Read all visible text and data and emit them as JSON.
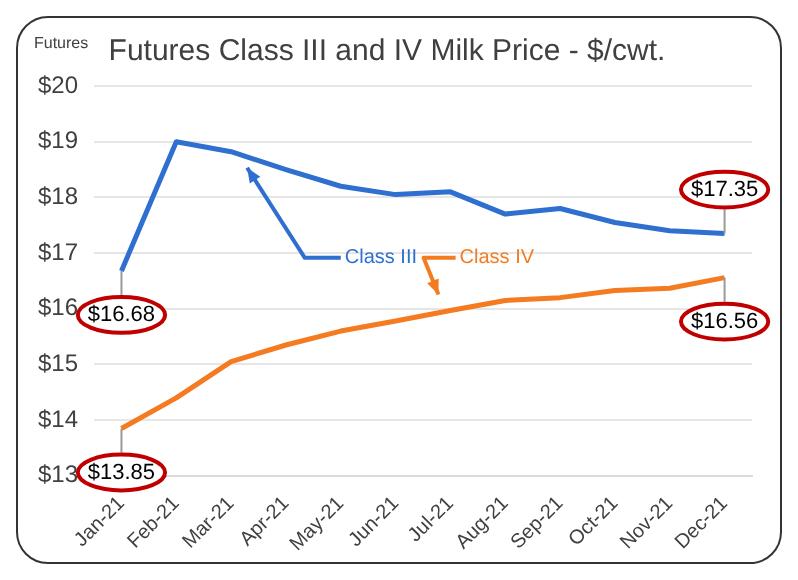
{
  "chart_data": {
    "type": "line",
    "title": "Futures Class III and IV Milk Price - $/cwt.",
    "annotations": [
      "Futures"
    ],
    "categories": [
      "Jan-21",
      "Feb-21",
      "Mar-21",
      "Apr-21",
      "May-21",
      "Jun-21",
      "Jul-21",
      "Aug-21",
      "Sep-21",
      "Oct-21",
      "Nov-21",
      "Dec-21"
    ],
    "series": [
      {
        "name": "Class III",
        "color": "#2e6fd0",
        "values": [
          16.68,
          19.0,
          18.82,
          18.5,
          18.2,
          18.05,
          18.1,
          17.7,
          17.8,
          17.55,
          17.4,
          17.35
        ],
        "value_labels": [
          "$16.68",
          null,
          null,
          null,
          null,
          null,
          null,
          null,
          null,
          null,
          null,
          "$17.35"
        ]
      },
      {
        "name": "Class IV",
        "color": "#f47b20",
        "values": [
          13.85,
          14.4,
          15.05,
          15.35,
          15.6,
          15.78,
          15.97,
          16.15,
          16.2,
          16.33,
          16.37,
          16.56
        ],
        "value_labels": [
          "$13.85",
          null,
          null,
          null,
          null,
          null,
          null,
          null,
          null,
          null,
          null,
          "$16.56"
        ]
      }
    ],
    "ylim": [
      13,
      20
    ],
    "yticks": [
      {
        "value": 13,
        "label": "$13"
      },
      {
        "value": 14,
        "label": "$14"
      },
      {
        "value": 15,
        "label": "$15"
      },
      {
        "value": 16,
        "label": "$16"
      },
      {
        "value": 17,
        "label": "$17"
      },
      {
        "value": 18,
        "label": "$18"
      },
      {
        "value": 19,
        "label": "$19"
      },
      {
        "value": 20,
        "label": "$20"
      }
    ],
    "grid": "y",
    "legend": false,
    "marker": "none",
    "line_style": "solid"
  }
}
